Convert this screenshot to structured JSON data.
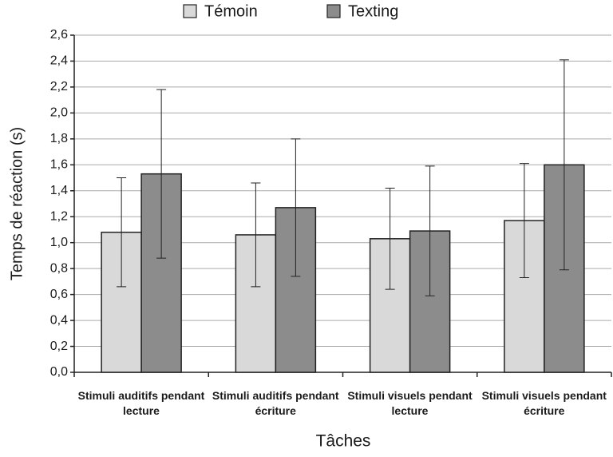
{
  "chart_data": {
    "type": "bar",
    "x_label": "Tâches",
    "y_label": "Temps de réaction (s)",
    "categories": [
      "Stimuli auditifs pendant lecture",
      "Stimuli auditifs pendant écriture",
      "Stimuli visuels pendant lecture",
      "Stimuli visuels pendant écriture"
    ],
    "series": [
      {
        "name": "Témoin",
        "color": "#d9d9d9",
        "values": [
          1.08,
          1.06,
          1.03,
          1.17
        ],
        "errors": [
          0.42,
          0.4,
          0.39,
          0.44
        ]
      },
      {
        "name": "Texting",
        "color": "#8c8c8c",
        "values": [
          1.53,
          1.27,
          1.09,
          1.6
        ],
        "errors": [
          0.65,
          0.53,
          0.5,
          0.81
        ]
      }
    ],
    "ylim": [
      0,
      2.6
    ],
    "yticks": [
      {
        "value": 0,
        "label": "0,0"
      },
      {
        "value": 0.2,
        "label": "0,2"
      },
      {
        "value": 0.4,
        "label": "0,4"
      },
      {
        "value": 0.6,
        "label": "0,6"
      },
      {
        "value": 0.8,
        "label": "0,8"
      },
      {
        "value": 1.0,
        "label": "1,0"
      },
      {
        "value": 1.2,
        "label": "1,2"
      },
      {
        "value": 1.4,
        "label": "1,4"
      },
      {
        "value": 1.6,
        "label": "1,6"
      },
      {
        "value": 1.8,
        "label": "1,8"
      },
      {
        "value": 2.0,
        "label": "2,0"
      },
      {
        "value": 2.2,
        "label": "2,2"
      },
      {
        "value": 2.4,
        "label": "2,4"
      },
      {
        "value": 2.6,
        "label": "2,6"
      }
    ],
    "grid": true,
    "legend": "top"
  }
}
